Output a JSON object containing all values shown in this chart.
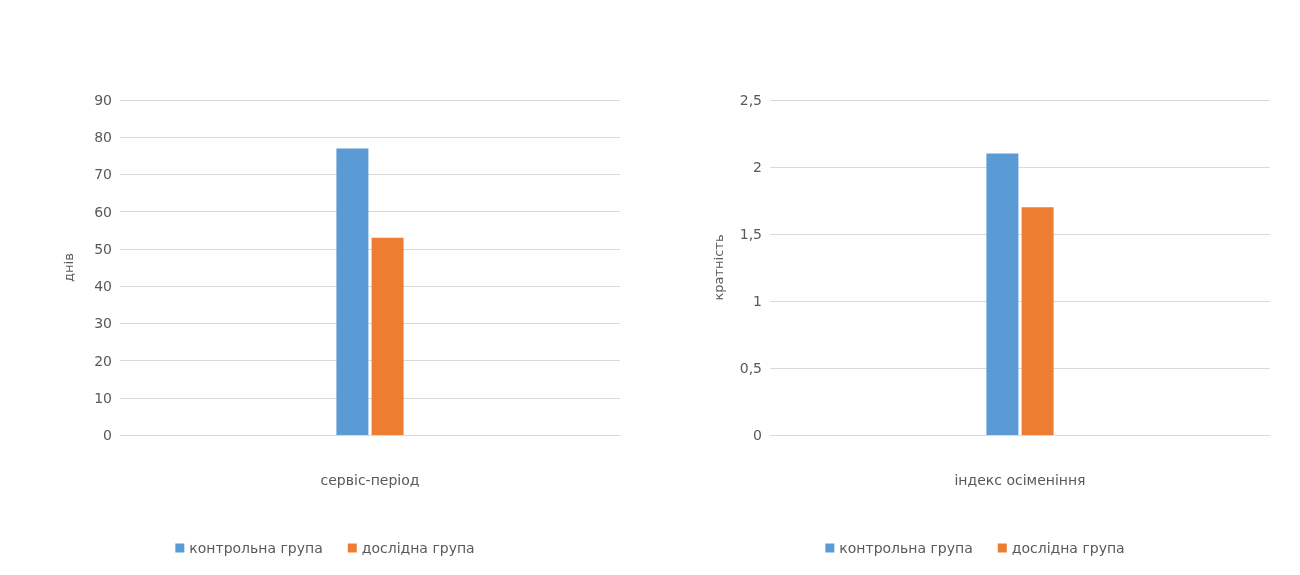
{
  "chart_data": [
    {
      "type": "bar",
      "categories": [
        null
      ],
      "xlabel": "сервіс-період",
      "ylabel": "днів",
      "ylim": [
        0,
        90
      ],
      "yticks": [
        0,
        10,
        20,
        30,
        40,
        50,
        60,
        70,
        80,
        90
      ],
      "grid": "y",
      "legend": "bottom",
      "series": [
        {
          "name": "контрольна група",
          "color": "#5b9bd5",
          "values": [
            77
          ]
        },
        {
          "name": "дослідна група",
          "color": "#ed7d31",
          "values": [
            53
          ]
        }
      ]
    },
    {
      "type": "bar",
      "categories": [
        null
      ],
      "xlabel": "індекс осіменіння",
      "ylabel": "кратність",
      "ylim": [
        0,
        2.5
      ],
      "yticks": [
        0,
        {
          "value": 0.5,
          "label": "0,5"
        },
        1,
        {
          "value": 1.5,
          "label": "1,5"
        },
        2,
        {
          "value": 2.5,
          "label": "2,5"
        }
      ],
      "grid": "y",
      "legend": "bottom",
      "series": [
        {
          "name": "контрольна група",
          "color": "#5b9bd5",
          "values": [
            2.1
          ]
        },
        {
          "name": "дослідна група",
          "color": "#ed7d31",
          "values": [
            1.7
          ]
        }
      ]
    }
  ]
}
